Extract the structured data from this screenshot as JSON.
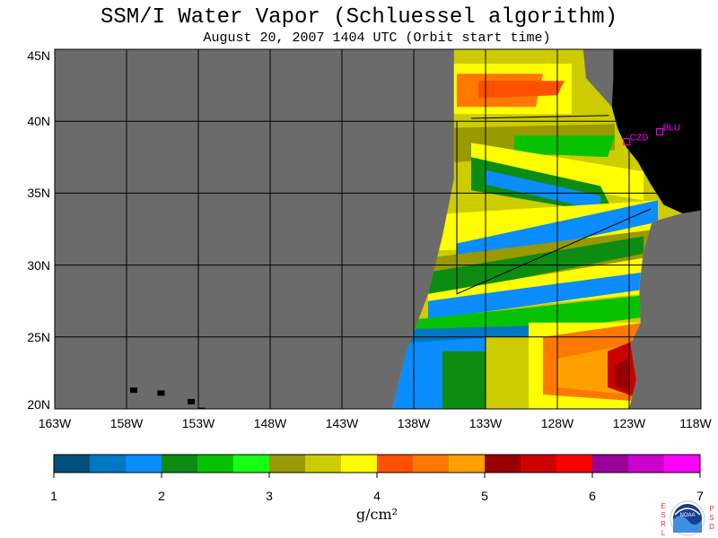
{
  "title": "SSM/I Water Vapor (Schluessel algorithm)",
  "subtitle": "August 20, 2007  1404 UTC  (Orbit start time)",
  "map": {
    "lat_labels": [
      "45N",
      "40N",
      "35N",
      "30N",
      "25N",
      "20N"
    ],
    "lon_labels": [
      "163W",
      "158W",
      "153W",
      "148W",
      "143W",
      "138W",
      "133W",
      "128W",
      "123W",
      "118W"
    ],
    "lat_range": [
      20,
      45
    ],
    "lon_range": [
      -163,
      -118
    ],
    "colors": {
      "no_data": "#6b6b6b",
      "land": "#000000",
      "grid": "#000000",
      "station": "#ff00ff"
    },
    "stations": [
      {
        "label": "CZD",
        "lat": 38.6,
        "lon": -123.2
      },
      {
        "label": "BLU",
        "lat": 39.3,
        "lon": -120.9
      }
    ]
  },
  "colorbar": {
    "units": "g/cm²",
    "tick_labels": [
      "1",
      "2",
      "3",
      "4",
      "5",
      "6",
      "7"
    ],
    "colors": [
      "#00507d",
      "#0079c2",
      "#0b8cff",
      "#0d8c12",
      "#07c200",
      "#17ff17",
      "#999900",
      "#cccc00",
      "#ffff00",
      "#ff5000",
      "#ff7800",
      "#ffa000",
      "#990000",
      "#cc0000",
      "#ff0000",
      "#990099",
      "#cc00cc",
      "#ff00ff"
    ]
  },
  "logo": {
    "center_text": "NOAA",
    "left_letters": [
      "E",
      "S",
      "R",
      "L"
    ],
    "right_letters": [
      "P",
      "S",
      "D"
    ]
  }
}
